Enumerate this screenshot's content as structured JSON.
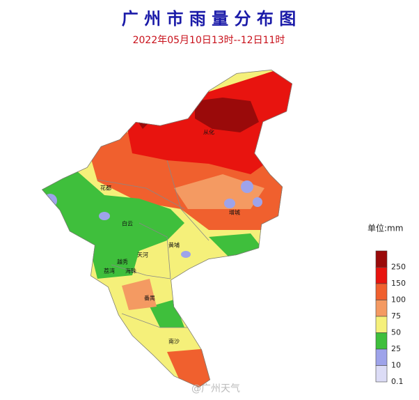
{
  "header": {
    "title": "广 州 市 雨 量 分 布 图",
    "subtitle": "2022年05月10日13时--12日11时"
  },
  "districts": [
    {
      "label": "从化"
    },
    {
      "label": "花都"
    },
    {
      "label": "增城"
    },
    {
      "label": "白云"
    },
    {
      "label": "黄埔"
    },
    {
      "label": "天河"
    },
    {
      "label": "越秀"
    },
    {
      "label": "荔湾"
    },
    {
      "label": "海珠"
    },
    {
      "label": "番禺"
    },
    {
      "label": "南沙"
    }
  ],
  "legend": {
    "unit": "单位:mm",
    "levels": [
      {
        "label": 250,
        "color": "#9a0a0a"
      },
      {
        "label": 150,
        "color": "#e8140f"
      },
      {
        "label": 100,
        "color": "#f0602e"
      },
      {
        "label": 75,
        "color": "#f49a62"
      },
      {
        "label": 50,
        "color": "#f5f07a"
      },
      {
        "label": 25,
        "color": "#3fbf3c"
      },
      {
        "label": 10,
        "color": "#9ea3ea"
      },
      {
        "label": 0.1,
        "color": "#dcdcf6"
      }
    ]
  },
  "watermark": "@广州天气"
}
